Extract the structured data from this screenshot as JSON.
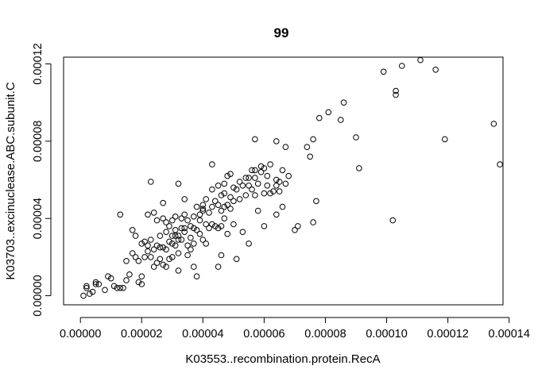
{
  "chart_data": {
    "type": "scatter",
    "title": "99",
    "xlabel": "K03553..recombination.protein.RecA",
    "ylabel": "K03703..excinuclease.ABC.subunit.C",
    "xlim": [
      -5.5e-06,
      0.000138
    ],
    "ylim": [
      -4.7e-06,
      0.0001235
    ],
    "xticks": [
      0,
      2e-05,
      4e-05,
      6e-05,
      8e-05,
      0.0001,
      0.00012,
      0.00014
    ],
    "xtick_labels": [
      "0.00000",
      "0.00002",
      "0.00004",
      "0.00006",
      "0.00008",
      "0.00010",
      "0.00012",
      "0.00014"
    ],
    "yticks": [
      0,
      4e-05,
      8e-05,
      0.00012
    ],
    "ytick_labels": [
      "0.00000",
      "0.00004",
      "0.00008",
      "0.00012"
    ],
    "grid": false,
    "legend": "none",
    "marker": "open-circle",
    "color": "#000000",
    "points": [
      [
        1e-06,
        0.0
      ],
      [
        2e-06,
        5e-06
      ],
      [
        2e-06,
        4e-06
      ],
      [
        3e-06,
        1e-06
      ],
      [
        4e-06,
        2e-06
      ],
      [
        5e-06,
        6e-06
      ],
      [
        5e-06,
        7e-06
      ],
      [
        6e-06,
        6e-06
      ],
      [
        8e-06,
        3e-06
      ],
      [
        9e-06,
        1e-05
      ],
      [
        1e-05,
        9e-06
      ],
      [
        1.1e-05,
        5e-06
      ],
      [
        1.2e-05,
        4e-06
      ],
      [
        1.3e-05,
        4e-06
      ],
      [
        1.3e-05,
        4.2e-05
      ],
      [
        1.4e-05,
        4e-06
      ],
      [
        1.5e-05,
        8e-06
      ],
      [
        1.5e-05,
        1.8e-05
      ],
      [
        1.6e-05,
        1.1e-05
      ],
      [
        1.7e-05,
        2.2e-05
      ],
      [
        1.7e-05,
        3.4e-05
      ],
      [
        1.8e-05,
        3.1e-05
      ],
      [
        1.8e-05,
        2e-05
      ],
      [
        1.9e-05,
        7e-06
      ],
      [
        1.9e-05,
        1.8e-05
      ],
      [
        2e-05,
        1e-05
      ],
      [
        2e-05,
        2.7e-05
      ],
      [
        2e-05,
        6e-06
      ],
      [
        2.1e-05,
        2.8e-05
      ],
      [
        2.1e-05,
        2e-05
      ],
      [
        2.2e-05,
        4.2e-05
      ],
      [
        2.2e-05,
        2.3e-05
      ],
      [
        2.2e-05,
        2.6e-05
      ],
      [
        2.3e-05,
        2.9e-05
      ],
      [
        2.3e-05,
        2e-05
      ],
      [
        2.3e-05,
        5.9e-05
      ],
      [
        2.4e-05,
        4.3e-05
      ],
      [
        2.4e-05,
        1.5e-05
      ],
      [
        2.4e-05,
        2.4e-05
      ],
      [
        2.5e-05,
        1.7e-05
      ],
      [
        2.5e-05,
        3.9e-05
      ],
      [
        2.5e-05,
        2.6e-05
      ],
      [
        2.6e-05,
        3.1e-05
      ],
      [
        2.6e-05,
        2.5e-05
      ],
      [
        2.6e-05,
        1.9e-05
      ],
      [
        2.7e-05,
        4.8e-05
      ],
      [
        2.7e-05,
        4e-05
      ],
      [
        2.7e-05,
        1.6e-05
      ],
      [
        2.7e-05,
        2.5e-05
      ],
      [
        2.8e-05,
        3.8e-05
      ],
      [
        2.8e-05,
        3.3e-05
      ],
      [
        2.8e-05,
        2.4e-05
      ],
      [
        2.8e-05,
        1.5e-05
      ],
      [
        2.9e-05,
        3.6e-05
      ],
      [
        2.9e-05,
        1.9e-05
      ],
      [
        2.9e-05,
        2.8e-05
      ],
      [
        3e-05,
        3.1e-05
      ],
      [
        3e-05,
        3.9e-05
      ],
      [
        3e-05,
        2.7e-05
      ],
      [
        3e-05,
        2e-05
      ],
      [
        3.1e-05,
        3.1e-05
      ],
      [
        3.1e-05,
        3.4e-05
      ],
      [
        3.1e-05,
        4.1e-05
      ],
      [
        3.1e-05,
        2.6e-05
      ],
      [
        3.2e-05,
        5.8e-05
      ],
      [
        3.2e-05,
        2.9e-05
      ],
      [
        3.2e-05,
        3.1e-05
      ],
      [
        3.2e-05,
        2.2e-05
      ],
      [
        3.2e-05,
        1.3e-05
      ],
      [
        3.3e-05,
        3.5e-05
      ],
      [
        3.3e-05,
        4e-05
      ],
      [
        3.3e-05,
        2.9e-05
      ],
      [
        3.4e-05,
        5e-05
      ],
      [
        3.4e-05,
        4.2e-05
      ],
      [
        3.4e-05,
        3.5e-05
      ],
      [
        3.4e-05,
        3.3e-05
      ],
      [
        3.5e-05,
        3.9e-05
      ],
      [
        3.5e-05,
        2.6e-05
      ],
      [
        3.5e-05,
        2.1e-05
      ],
      [
        3.6e-05,
        3.6e-05
      ],
      [
        3.6e-05,
        3e-05
      ],
      [
        3.6e-05,
        2.4e-05
      ],
      [
        3.7e-05,
        4.1e-05
      ],
      [
        3.7e-05,
        3.5e-05
      ],
      [
        3.7e-05,
        2.7e-05
      ],
      [
        3.7e-05,
        1.5e-05
      ],
      [
        3.8e-05,
        4.6e-05
      ],
      [
        3.8e-05,
        3.4e-05
      ],
      [
        3.8e-05,
        1e-05
      ],
      [
        3.9e-05,
        3.9e-05
      ],
      [
        3.9e-05,
        4.2e-05
      ],
      [
        3.9e-05,
        3.2e-05
      ],
      [
        4e-05,
        4.5e-05
      ],
      [
        4e-05,
        4.4e-05
      ],
      [
        4e-05,
        4.7e-05
      ],
      [
        4e-05,
        2.9e-05
      ],
      [
        4.1e-05,
        5e-05
      ],
      [
        4.1e-05,
        3.7e-05
      ],
      [
        4.1e-05,
        2.7e-05
      ],
      [
        4.2e-05,
        4.3e-05
      ],
      [
        4.2e-05,
        3.5e-05
      ],
      [
        4.3e-05,
        6.8e-05
      ],
      [
        4.3e-05,
        5.5e-05
      ],
      [
        4.3e-05,
        4.6e-05
      ],
      [
        4.3e-05,
        3.7e-05
      ],
      [
        4.4e-05,
        3.6e-05
      ],
      [
        4.4e-05,
        4.9e-05
      ],
      [
        4.5e-05,
        4.7e-05
      ],
      [
        4.5e-05,
        5.7e-05
      ],
      [
        4.5e-05,
        3.5e-05
      ],
      [
        4.5e-05,
        1.5e-05
      ],
      [
        4.6e-05,
        5.2e-05
      ],
      [
        4.6e-05,
        4.4e-05
      ],
      [
        4.6e-05,
        3.6e-05
      ],
      [
        4.6e-05,
        2.1e-05
      ],
      [
        4.7e-05,
        5.8e-05
      ],
      [
        4.7e-05,
        5.3e-05
      ],
      [
        4.7e-05,
        4.6e-05
      ],
      [
        4.7e-05,
        4e-05
      ],
      [
        4.8e-05,
        6.2e-05
      ],
      [
        4.8e-05,
        4.7e-05
      ],
      [
        4.8e-05,
        3.2e-05
      ],
      [
        4.9e-05,
        6.3e-05
      ],
      [
        4.9e-05,
        5.1e-05
      ],
      [
        4.9e-05,
        4.5e-05
      ],
      [
        5e-05,
        5.6e-05
      ],
      [
        5e-05,
        4.9e-05
      ],
      [
        5e-05,
        3.7e-05
      ],
      [
        5.1e-05,
        5.5e-05
      ],
      [
        5.1e-05,
        1.9e-05
      ],
      [
        5.2e-05,
        5.9e-05
      ],
      [
        5.2e-05,
        5e-05
      ],
      [
        5.3e-05,
        5.7e-05
      ],
      [
        5.3e-05,
        3.3e-05
      ],
      [
        5.4e-05,
        6.1e-05
      ],
      [
        5.4e-05,
        5.2e-05
      ],
      [
        5.5e-05,
        6.1e-05
      ],
      [
        5.5e-05,
        5.7e-05
      ],
      [
        5.5e-05,
        2.7e-05
      ],
      [
        5.6e-05,
        6.5e-05
      ],
      [
        5.6e-05,
        5.5e-05
      ],
      [
        5.7e-05,
        6.1e-05
      ],
      [
        5.7e-05,
        8.1e-05
      ],
      [
        5.7e-05,
        6.5e-05
      ],
      [
        5.7e-05,
        5.2e-05
      ],
      [
        5.8e-05,
        5.8e-05
      ],
      [
        5.8e-05,
        4.4e-05
      ],
      [
        5.9e-05,
        6.7e-05
      ],
      [
        5.9e-05,
        6.4e-05
      ],
      [
        6e-05,
        6.6e-05
      ],
      [
        6e-05,
        5.3e-05
      ],
      [
        6e-05,
        3.6e-05
      ],
      [
        6.1e-05,
        6.2e-05
      ],
      [
        6.1e-05,
        5.7e-05
      ],
      [
        6.2e-05,
        6.8e-05
      ],
      [
        6.2e-05,
        5.3e-05
      ],
      [
        6.3e-05,
        5.4e-05
      ],
      [
        6.4e-05,
        6e-05
      ],
      [
        6.4e-05,
        8e-05
      ],
      [
        6.4e-05,
        5.7e-05
      ],
      [
        6.4e-05,
        4.2e-05
      ],
      [
        6.5e-05,
        5.9e-05
      ],
      [
        6.5e-05,
        5.4e-05
      ],
      [
        6.6e-05,
        6.5e-05
      ],
      [
        6.6e-05,
        4.6e-05
      ],
      [
        6.7e-05,
        7.7e-05
      ],
      [
        6.7e-05,
        5.8e-05
      ],
      [
        6.8e-05,
        6.2e-05
      ],
      [
        7e-05,
        3.4e-05
      ],
      [
        7.1e-05,
        3.6e-05
      ],
      [
        7.4e-05,
        7.7e-05
      ],
      [
        7.5e-05,
        7.2e-05
      ],
      [
        7.6e-05,
        8.1e-05
      ],
      [
        7.6e-05,
        3.8e-05
      ],
      [
        7.7e-05,
        4.9e-05
      ],
      [
        7.8e-05,
        9.2e-05
      ],
      [
        8.1e-05,
        9.5e-05
      ],
      [
        8.5e-05,
        9.1e-05
      ],
      [
        8.6e-05,
        0.0001
      ],
      [
        9e-05,
        8.2e-05
      ],
      [
        9.1e-05,
        6.6e-05
      ],
      [
        9.9e-05,
        0.000116
      ],
      [
        0.000102,
        3.9e-05
      ],
      [
        0.000103,
        0.000104
      ],
      [
        0.000103,
        0.000106
      ],
      [
        0.000105,
        0.000119
      ],
      [
        0.000111,
        0.000122
      ],
      [
        0.000116,
        0.000117
      ],
      [
        0.000119,
        8.1e-05
      ],
      [
        0.000135,
        8.9e-05
      ],
      [
        0.000137,
        6.8e-05
      ]
    ]
  }
}
